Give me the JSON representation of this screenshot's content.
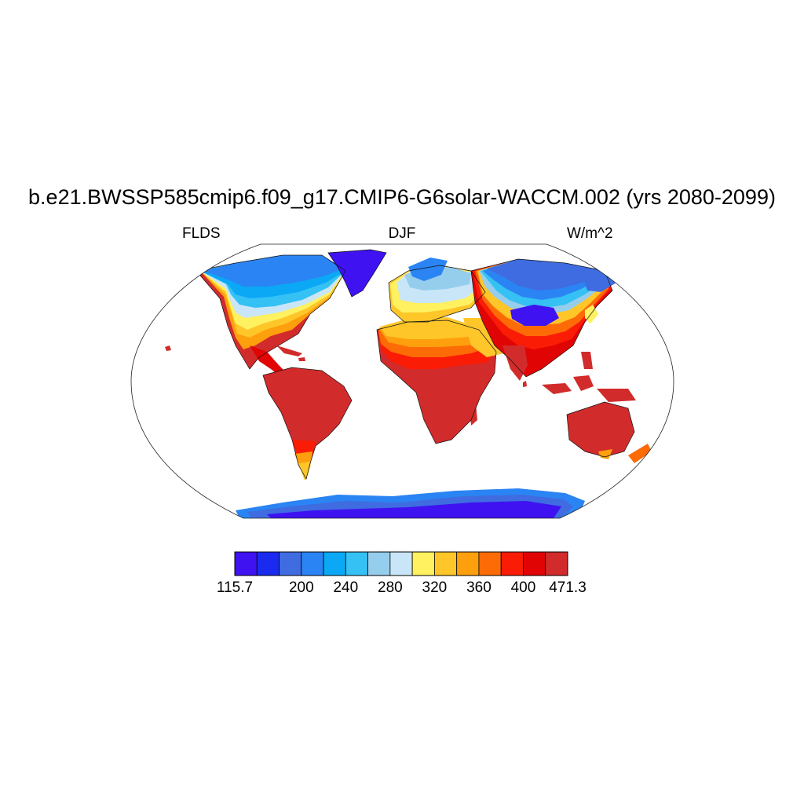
{
  "title": "b.e21.BWSSP585cmip6.f09_g17.CMIP6-G6solar-WACCM.002 (yrs 2080-2099)",
  "subtitle_left": "FLDS",
  "subtitle_center": "DJF",
  "subtitle_right": "W/m^2",
  "colorbar": {
    "colors": [
      "#3f12f2",
      "#1a2bef",
      "#3f6ce0",
      "#2b84f3",
      "#0ba8f5",
      "#35c1f3",
      "#95cded",
      "#c9e6f8",
      "#fff15f",
      "#fec629",
      "#fe9f0d",
      "#fd6b07",
      "#fb1c06",
      "#e00404",
      "#d22b2b"
    ],
    "tick_labels": [
      "115.7",
      "200",
      "240",
      "280",
      "320",
      "360",
      "400",
      "471.3"
    ],
    "min": 115.7,
    "max": 471.3
  },
  "map": {
    "projection": "Robinson",
    "palette": {
      "arctic": "#3f12f2",
      "cold": "#3f6ce0",
      "cool": "#2b84f3",
      "mild": "#0ba8f5",
      "lightblue": "#35c1f3",
      "pale": "#95cded",
      "palest": "#c9e6f8",
      "yellow": "#fff15f",
      "gold": "#fec629",
      "orange": "#fe9f0d",
      "darkorange": "#fd6b07",
      "red": "#fb1c06",
      "crimson": "#e00404",
      "tropical": "#d22b2b"
    }
  }
}
